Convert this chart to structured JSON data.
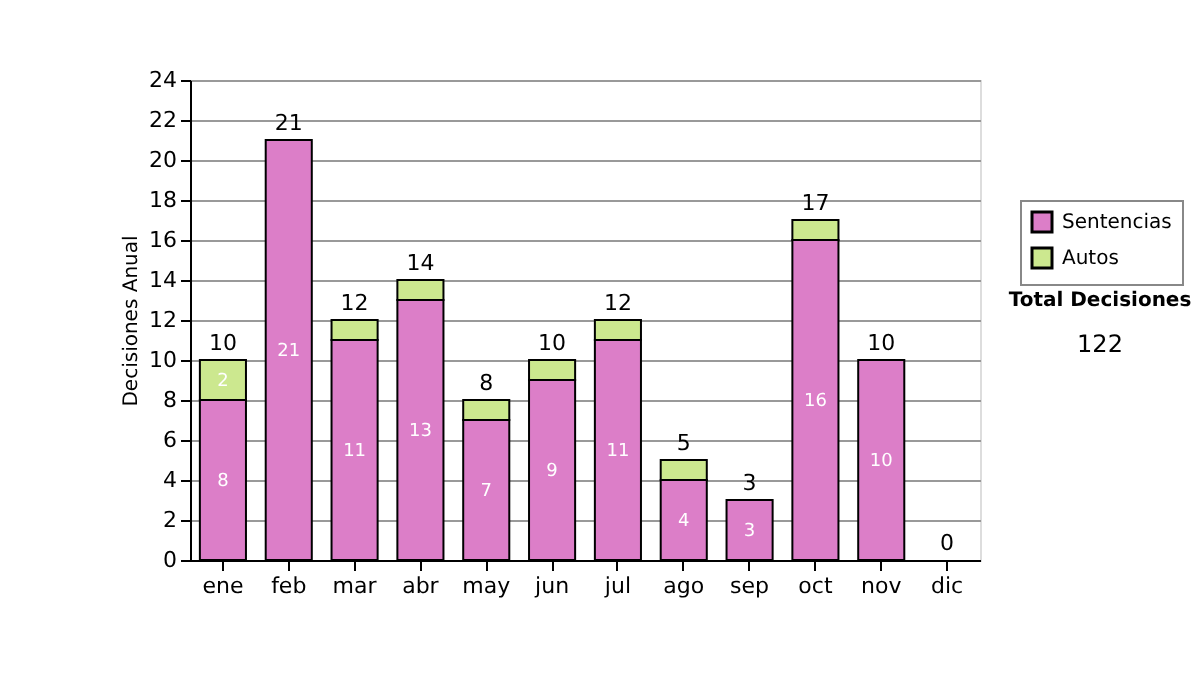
{
  "chart_data": {
    "type": "bar",
    "stacked": true,
    "ylabel": "Decisiones Anual",
    "categories": [
      "ene",
      "feb",
      "mar",
      "abr",
      "may",
      "jun",
      "jul",
      "ago",
      "sep",
      "oct",
      "nov",
      "dic"
    ],
    "series": [
      {
        "name": "Sentencias",
        "color": "#dc7ec8",
        "values": [
          8,
          21,
          11,
          13,
          7,
          9,
          11,
          4,
          3,
          16,
          10,
          0
        ],
        "value_labels": [
          "8",
          "21",
          "11",
          "13",
          "7",
          "9",
          "11",
          "4",
          "3",
          "16",
          "10",
          null
        ]
      },
      {
        "name": "Autos",
        "color": "#cce88f",
        "values": [
          2,
          0,
          1,
          1,
          1,
          1,
          1,
          1,
          0,
          1,
          0,
          0
        ],
        "value_labels": [
          "2",
          null,
          null,
          null,
          null,
          null,
          null,
          null,
          null,
          null,
          null,
          null
        ]
      }
    ],
    "totals": [
      "10",
      "21",
      "12",
      "14",
      "8",
      "10",
      "12",
      "5",
      "3",
      "17",
      "10",
      "0"
    ],
    "ylim": [
      0,
      24
    ],
    "yticks": [
      0,
      2,
      4,
      6,
      8,
      10,
      12,
      14,
      16,
      18,
      20,
      22,
      24
    ],
    "grid": "y",
    "legend": "right",
    "annotations": [
      "Total Decisiones",
      "122"
    ]
  }
}
